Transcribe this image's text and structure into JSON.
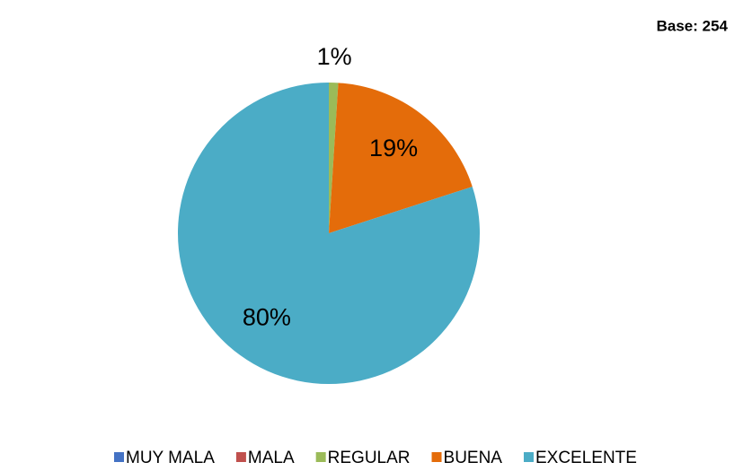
{
  "chart_data": {
    "type": "pie",
    "subtitle": "Base: 254",
    "categories": [
      "MUY MALA",
      "MALA",
      "REGULAR",
      "BUENA",
      "EXCELENTE"
    ],
    "values": [
      0,
      0,
      1,
      19,
      80
    ],
    "value_labels": [
      null,
      null,
      "1%",
      "19%",
      "80%"
    ],
    "colors": [
      "#4472c4",
      "#c0504d",
      "#9bbb59",
      "#e46c0a",
      "#4bacc6"
    ],
    "legend": "bottom"
  }
}
